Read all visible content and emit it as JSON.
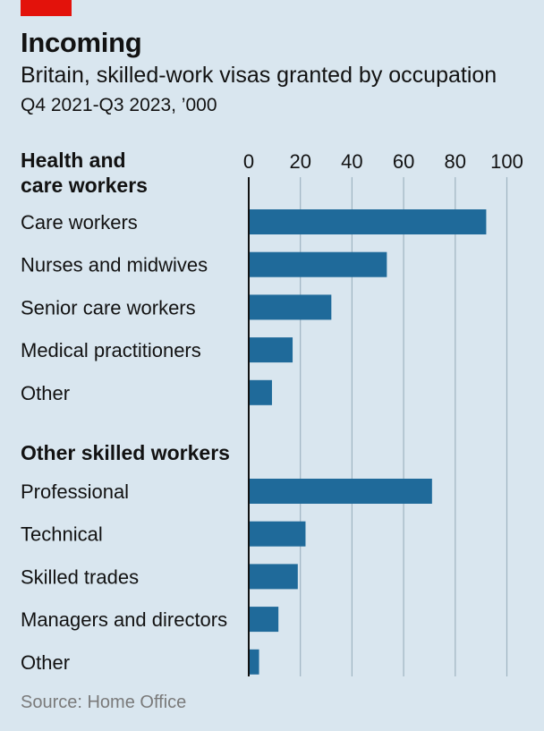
{
  "header": {
    "title": "Incoming",
    "subtitle": "Britain, skilled-work visas granted by occupation",
    "period": "Q4 2021-Q3 2023, ’000"
  },
  "colors": {
    "bar": "#1f6a9a",
    "accent": "#e3120b",
    "grid": "#9fb4c1",
    "axis": "#121212"
  },
  "chart_data": {
    "type": "bar",
    "orientation": "horizontal",
    "xlim": [
      0,
      100
    ],
    "ticks": [
      0,
      20,
      40,
      60,
      80,
      100
    ],
    "grid": true,
    "groups": [
      {
        "label": "Health and care workers",
        "label_lines": [
          "Health and",
          "care workers"
        ],
        "categories": [
          "Care workers",
          "Nurses and midwives",
          "Senior care workers",
          "Medical practitioners",
          "Other"
        ],
        "values": [
          92,
          53.5,
          32,
          17,
          9
        ]
      },
      {
        "label": "Other skilled workers",
        "label_lines": [
          "Other skilled workers"
        ],
        "categories": [
          "Professional",
          "Technical",
          "Skilled trades",
          "Managers and directors",
          "Other"
        ],
        "values": [
          71,
          22,
          19,
          11.5,
          4
        ]
      }
    ]
  },
  "source": "Source: Home Office"
}
